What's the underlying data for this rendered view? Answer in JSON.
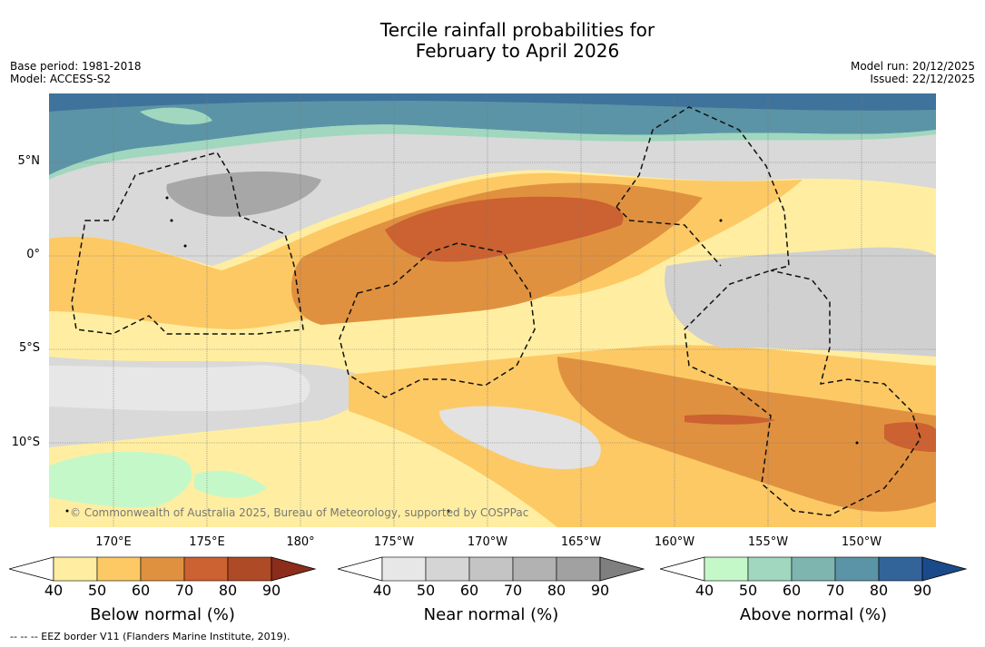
{
  "title": {
    "line1": "Tercile rainfall probabilities for",
    "line2": "February to April 2026"
  },
  "meta": {
    "base_period": "Base period: 1981-2018",
    "model": "Model: ACCESS-S2",
    "model_run": "Model run: 20/12/2025",
    "issued": "Issued: 22/12/2025"
  },
  "axes": {
    "lat_labels": [
      "5°N",
      "0°",
      "5°S",
      "10°S"
    ],
    "lon_labels": [
      "170°E",
      "175°E",
      "180°",
      "175°W",
      "170°W",
      "165°W",
      "160°W",
      "155°W",
      "150°W"
    ]
  },
  "credit": "© Commonwealth of Australia 2025, Bureau of Meteorology, supported by COSPPac",
  "colorbars": {
    "below": {
      "title": "Below normal (%)",
      "ticks": [
        "40",
        "50",
        "60",
        "70",
        "80",
        "90"
      ],
      "colors": [
        "#ffeea1",
        "#fdc965",
        "#e0913f",
        "#cc6131",
        "#ae4a26",
        "#8c2c1a"
      ]
    },
    "near": {
      "title": "Near normal (%)",
      "ticks": [
        "40",
        "50",
        "60",
        "70",
        "80",
        "90"
      ],
      "colors": [
        "#e7e7e7",
        "#d5d5d5",
        "#c4c4c4",
        "#b2b2b2",
        "#a1a1a1",
        "#7f7f7f"
      ]
    },
    "above": {
      "title": "Above normal (%)",
      "ticks": [
        "40",
        "50",
        "60",
        "70",
        "80",
        "90"
      ],
      "colors": [
        "#c5f8c8",
        "#a0d7be",
        "#7fb5af",
        "#5b94a6",
        "#32649a",
        "#1b4a8a"
      ]
    }
  },
  "footnote": "--  --  -- EEZ border V11 (Flanders Marine Institute, 2019)."
}
